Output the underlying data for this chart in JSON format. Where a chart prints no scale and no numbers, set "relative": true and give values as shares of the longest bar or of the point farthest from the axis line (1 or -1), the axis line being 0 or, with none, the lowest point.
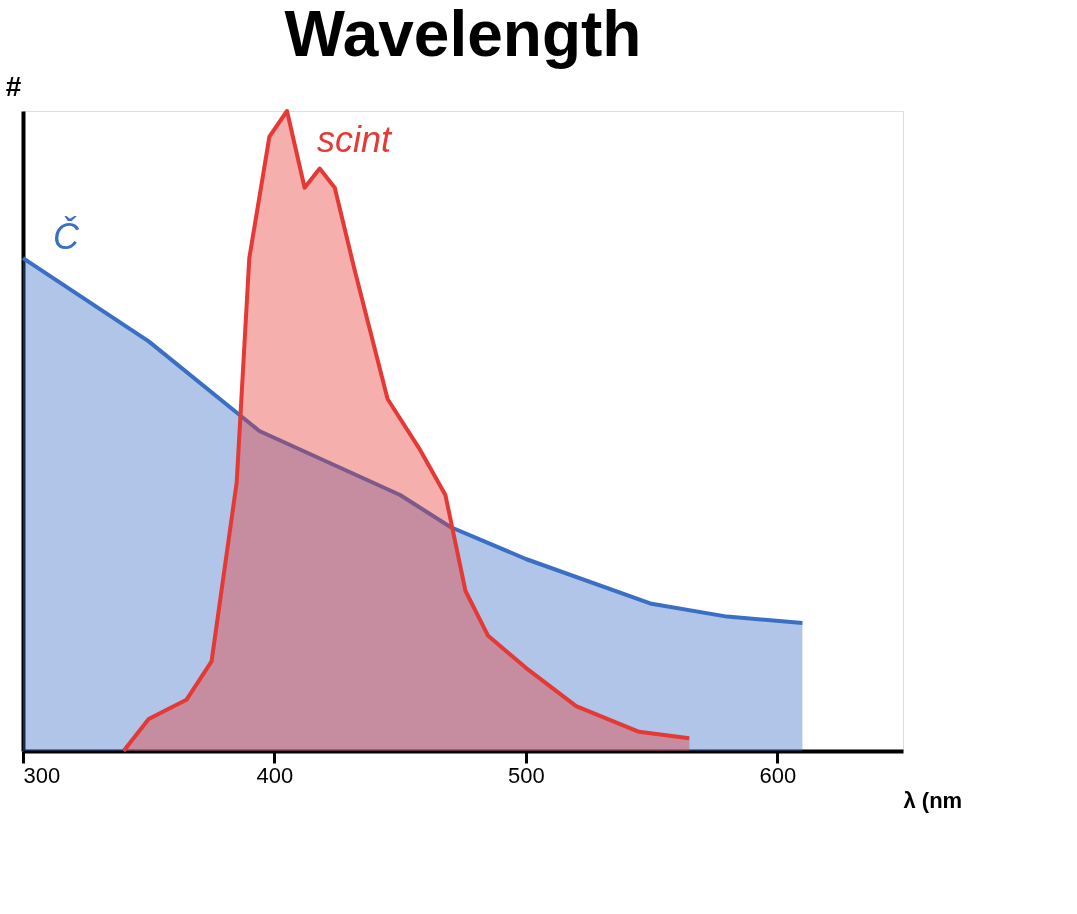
{
  "chart_data": {
    "type": "area",
    "title": "Wavelength",
    "xlabel": "λ (nm",
    "ylabel": "#",
    "relative": true,
    "xlim": [
      300,
      650
    ],
    "xticks": [
      300,
      400,
      500,
      600
    ],
    "grid": false,
    "series": [
      {
        "name": "Č",
        "color": "#3a6fc4",
        "x": [
          300,
          350,
          394,
          450,
          470,
          500,
          550,
          580,
          610
        ],
        "values": [
          0.77,
          0.64,
          0.5,
          0.4,
          0.35,
          0.3,
          0.23,
          0.21,
          0.2
        ]
      },
      {
        "name": "scint",
        "color": "#e53935",
        "x": [
          340,
          350,
          365,
          375,
          385,
          390,
          398,
          405,
          412,
          418,
          424,
          432,
          445,
          458,
          468,
          476,
          485,
          500,
          520,
          545,
          565
        ],
        "values": [
          0,
          0.05,
          0.08,
          0.14,
          0.42,
          0.77,
          0.96,
          1.0,
          0.88,
          0.91,
          0.88,
          0.75,
          0.55,
          0.47,
          0.4,
          0.25,
          0.18,
          0.13,
          0.07,
          0.03,
          0.02
        ]
      }
    ]
  }
}
